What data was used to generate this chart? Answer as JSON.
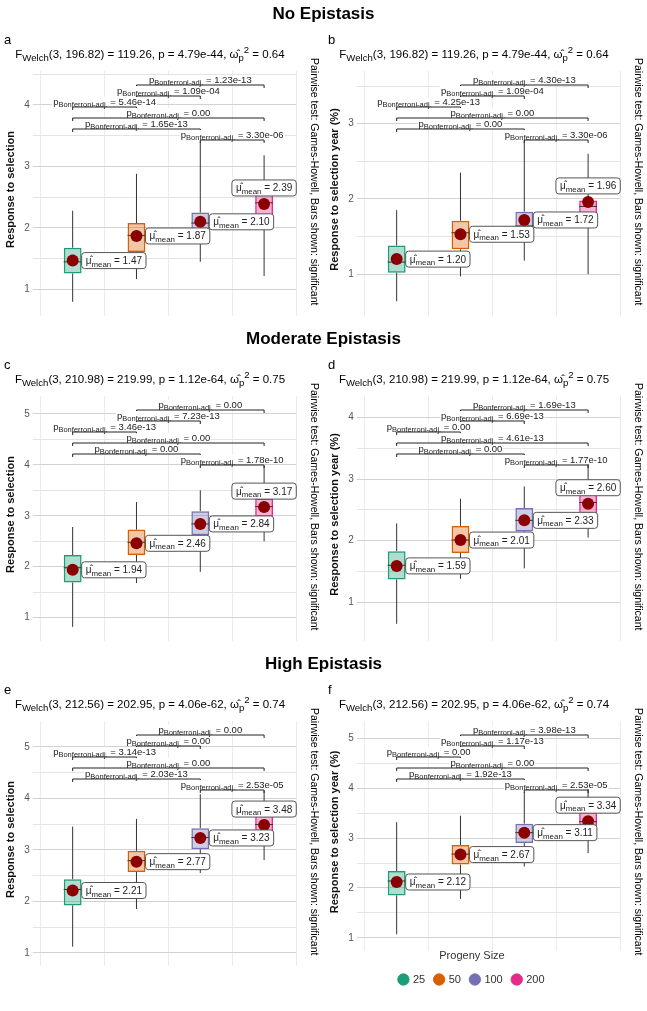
{
  "chart_data": [
    {
      "type": "box",
      "title": "No Epistasis",
      "subtitle": "F$_{Welch}$(3, 196.82) = 119.26, p = 4.79e-44, ω̂$_{p}$$^{2}$ = 0.64",
      "ylabel": "Response to selection",
      "y2label": "Pairwise test: Games-Howell, Bars shown: significant",
      "categories": [
        null,
        null,
        null,
        null
      ],
      "colors": [
        "#1b9e77",
        "#d95f02",
        "#7570b3",
        "#e7298a"
      ],
      "tick_labels": "y",
      "grid": true,
      "ylim": [
        0.7,
        4.55
      ],
      "yticks": [
        1,
        {
          "value": 1.5,
          "label": null
        },
        2,
        {
          "value": 2.5,
          "label": null
        },
        3,
        {
          "value": 3.5,
          "label": null
        },
        4,
        {
          "value": 4.5,
          "label": null
        }
      ],
      "boxes": [
        {
          "low": 0.8,
          "q1": 1.26,
          "median": 1.45,
          "q3": 1.68,
          "high": 2.28,
          "mean": 1.47
        },
        {
          "low": 1.17,
          "q1": 1.61,
          "median": 1.88,
          "q3": 2.08,
          "high": 2.88,
          "mean": 1.87
        },
        {
          "low": 1.45,
          "q1": 1.92,
          "median": 2.08,
          "q3": 2.25,
          "high": 3.4,
          "mean": 2.1
        },
        {
          "low": 1.22,
          "q1": 2.15,
          "median": 2.41,
          "q3": 2.63,
          "high": 3.18,
          "mean": 2.39
        }
      ],
      "value_labels": [
        "μ̂$_{mean}$ = 1.47",
        "μ̂$_{mean}$ = 1.87",
        "μ̂$_{mean}$ = 2.10",
        "μ̂$_{mean}$ = 2.39"
      ],
      "annotations": [
        "a",
        "p$_{Bonferroni-adj.}$ = 3.30e-06",
        "p$_{Bonferroni-adj.}$ = 1.65e-13",
        "p$_{Bonferroni-adj.}$ = 0.00",
        "p$_{Bonferroni-adj.}$ = 5.46e-14",
        "p$_{Bonferroni-adj.}$ = 1.09e-04",
        "p$_{Bonferroni-adj.}$ = 1.23e-13"
      ]
    },
    {
      "type": "box",
      "subtitle": "F$_{Welch}$(3, 196.82) = 119.26, p = 4.79e-44, ω̂$_{p}$$^{2}$ = 0.64",
      "ylabel": "Response to selection year (%)",
      "y2label": "Pairwise test: Games-Howell, Bars shown: significant",
      "categories": [
        null,
        null,
        null,
        null
      ],
      "colors": [
        "#1b9e77",
        "#d95f02",
        "#7570b3",
        "#e7298a"
      ],
      "tick_labels": "y",
      "grid": true,
      "ylim": [
        0.55,
        3.7
      ],
      "yticks": [
        1,
        {
          "value": 1.5,
          "label": null
        },
        2,
        {
          "value": 2.5,
          "label": null
        },
        3,
        {
          "value": 3.5,
          "label": null
        }
      ],
      "boxes": [
        {
          "low": 0.64,
          "q1": 1.02,
          "median": 1.16,
          "q3": 1.38,
          "high": 1.85,
          "mean": 1.2
        },
        {
          "low": 0.97,
          "q1": 1.33,
          "median": 1.55,
          "q3": 1.71,
          "high": 2.35,
          "mean": 1.53
        },
        {
          "low": 1.18,
          "q1": 1.43,
          "median": 1.64,
          "q3": 1.83,
          "high": 2.78,
          "mean": 1.72
        },
        {
          "low": 1.0,
          "q1": 1.74,
          "median": 1.9,
          "q3": 1.98,
          "high": 2.6,
          "mean": 1.96
        }
      ],
      "value_labels": [
        "μ̂$_{mean}$ = 1.20",
        "μ̂$_{mean}$ = 1.53",
        "μ̂$_{mean}$ = 1.72",
        "μ̂$_{mean}$ = 1.96"
      ],
      "annotations": [
        "b",
        "p$_{Bonferroni-adj.}$ = 3.30e-06",
        "p$_{Bonferroni-adj.}$ = 0.00",
        "p$_{Bonferroni-adj.}$ = 0.00",
        "p$_{Bonferroni-adj.}$ = 4.25e-13",
        "p$_{Bonferroni-adj.}$ = 1.09e-04",
        "p$_{Bonferroni-adj.}$ = 4.30e-13"
      ]
    },
    {
      "type": "box",
      "title": "Moderate Epistasis",
      "subtitle": "F$_{Welch}$(3, 210.98) = 219.99, p = 1.12e-64, ω̂$_{p}$$^{2}$ = 0.75",
      "ylabel": "Response to selection",
      "y2label": "Pairwise test: Games-Howell, Bars shown: significant",
      "categories": [
        null,
        null,
        null,
        null
      ],
      "colors": [
        "#1b9e77",
        "#d95f02",
        "#7570b3",
        "#e7298a"
      ],
      "tick_labels": "y",
      "grid": true,
      "ylim": [
        0.7,
        5.35
      ],
      "yticks": [
        1,
        {
          "value": 1.5,
          "label": null
        },
        2,
        {
          "value": 2.5,
          "label": null
        },
        3,
        {
          "value": 3.5,
          "label": null
        },
        4,
        {
          "value": 4.5,
          "label": null
        },
        5
      ],
      "boxes": [
        {
          "low": 0.82,
          "q1": 1.69,
          "median": 1.98,
          "q3": 2.23,
          "high": 2.78,
          "mean": 1.94
        },
        {
          "low": 1.68,
          "q1": 2.23,
          "median": 2.48,
          "q3": 2.73,
          "high": 3.27,
          "mean": 2.46
        },
        {
          "low": 1.9,
          "q1": 2.62,
          "median": 2.84,
          "q3": 3.09,
          "high": 3.5,
          "mean": 2.84
        },
        {
          "low": 2.5,
          "q1": 2.98,
          "median": 3.18,
          "q3": 3.34,
          "high": 3.98,
          "mean": 3.17
        }
      ],
      "value_labels": [
        "μ̂$_{mean}$ = 1.94",
        "μ̂$_{mean}$ = 2.46",
        "μ̂$_{mean}$ = 2.84",
        "μ̂$_{mean}$ = 3.17"
      ],
      "annotations": [
        "c",
        "p$_{Bonferroni-adj.}$ = 1.78e-10",
        "p$_{Bonferroni-adj.}$ = 0.00",
        "p$_{Bonferroni-adj.}$ = 0.00",
        "p$_{Bonferroni-adj.}$ = 3.46e-13",
        "p$_{Bonferroni-adj.}$ = 7.23e-13",
        "p$_{Bonferroni-adj.}$ = 0.00"
      ]
    },
    {
      "type": "box",
      "subtitle": "F$_{Welch}$(3, 210.98) = 219.99, p = 1.12e-64, ω̂$_{p}$$^{2}$ = 0.75",
      "ylabel": "Response to selection year (%)",
      "y2label": "Pairwise test: Games-Howell, Bars shown: significant",
      "categories": [
        null,
        null,
        null,
        null
      ],
      "colors": [
        "#1b9e77",
        "#d95f02",
        "#7570b3",
        "#e7298a"
      ],
      "tick_labels": "y",
      "grid": true,
      "ylim": [
        0.5,
        4.35
      ],
      "yticks": [
        1,
        {
          "value": 1.5,
          "label": null
        },
        2,
        {
          "value": 2.5,
          "label": null
        },
        3,
        {
          "value": 3.5,
          "label": null
        },
        4
      ],
      "boxes": [
        {
          "low": 0.65,
          "q1": 1.37,
          "median": 1.6,
          "q3": 1.83,
          "high": 2.28,
          "mean": 1.59
        },
        {
          "low": 1.38,
          "q1": 1.8,
          "median": 2.01,
          "q3": 2.24,
          "high": 2.68,
          "mean": 2.01
        },
        {
          "low": 1.55,
          "q1": 2.15,
          "median": 2.33,
          "q3": 2.53,
          "high": 2.88,
          "mean": 2.33
        },
        {
          "low": 2.05,
          "q1": 2.44,
          "median": 2.62,
          "q3": 2.76,
          "high": 3.25,
          "mean": 2.6
        }
      ],
      "value_labels": [
        "μ̂$_{mean}$ = 1.59",
        "μ̂$_{mean}$ = 2.01",
        "μ̂$_{mean}$ = 2.33",
        "μ̂$_{mean}$ = 2.60"
      ],
      "annotations": [
        "d",
        "p$_{Bonferroni-adj.}$ = 1.77e-10",
        "p$_{Bonferroni-adj.}$ = 0.00",
        "p$_{Bonferroni-adj.}$ = 4.61e-13",
        "p$_{Bonferroni-adj.}$ = 0.00",
        "p$_{Bonferroni-adj.}$ = 6.69e-13",
        "p$_{Bonferroni-adj.}$ = 1.69e-13"
      ]
    },
    {
      "type": "box",
      "title": "High Epistasis",
      "subtitle": "F$_{Welch}$(3, 212.56) = 202.95, p = 4.06e-62, ω̂$_{p}$$^{2}$ = 0.74",
      "ylabel": "Response to selection",
      "y2label": "Pairwise test: Games-Howell, Bars shown: significant",
      "categories": [
        null,
        null,
        null,
        null
      ],
      "colors": [
        "#1b9e77",
        "#d95f02",
        "#7570b3",
        "#e7298a"
      ],
      "tick_labels": "y",
      "grid": true,
      "ylim": [
        0.9,
        5.5
      ],
      "yticks": [
        1,
        {
          "value": 1.5,
          "label": null
        },
        2,
        {
          "value": 2.5,
          "label": null
        },
        3,
        {
          "value": 3.5,
          "label": null
        },
        4,
        {
          "value": 4.5,
          "label": null
        },
        5
      ],
      "boxes": [
        {
          "low": 1.12,
          "q1": 1.92,
          "median": 2.23,
          "q3": 2.43,
          "high": 3.45,
          "mean": 2.21
        },
        {
          "low": 1.85,
          "q1": 2.57,
          "median": 2.79,
          "q3": 2.98,
          "high": 3.6,
          "mean": 2.77
        },
        {
          "low": 2.55,
          "q1": 3.01,
          "median": 3.24,
          "q3": 3.42,
          "high": 4.08,
          "mean": 3.23
        },
        {
          "low": 2.8,
          "q1": 3.28,
          "median": 3.49,
          "q3": 3.69,
          "high": 4.15,
          "mean": 3.48
        }
      ],
      "value_labels": [
        "μ̂$_{mean}$ = 2.21",
        "μ̂$_{mean}$ = 2.77",
        "μ̂$_{mean}$ = 3.23",
        "μ̂$_{mean}$ = 3.48"
      ],
      "annotations": [
        "e",
        "p$_{Bonferroni-adj.}$ = 2.53e-05",
        "p$_{Bonferroni-adj.}$ = 2.03e-13",
        "p$_{Bonferroni-adj.}$ = 0.00",
        "p$_{Bonferroni-adj.}$ = 3.14e-13",
        "p$_{Bonferroni-adj.}$ = 0.00",
        "p$_{Bonferroni-adj.}$ = 0.00"
      ]
    },
    {
      "type": "box",
      "subtitle": "F$_{Welch}$(3, 212.56) = 202.95, p = 4.06e-62, ω̂$_{p}$$^{2}$ = 0.74",
      "ylabel": "Response to selection year (%)",
      "y2label": "Pairwise test: Games-Howell, Bars shown: significant",
      "legend_title": "Progeny Size",
      "legend": "bottom",
      "categories": [
        null,
        null,
        null,
        null
      ],
      "tick_labels": "y",
      "grid": true,
      "ylim": [
        0.9,
        5.35
      ],
      "yticks": [
        1,
        {
          "value": 1.5,
          "label": null
        },
        2,
        {
          "value": 2.5,
          "label": null
        },
        3,
        {
          "value": 3.5,
          "label": null
        },
        4,
        {
          "value": 4.5,
          "label": null
        },
        5
      ],
      "series": [
        {
          "name": "25",
          "color": "#1b9e77",
          "boxes": [
            {
              "low": 1.07,
              "q1": 1.85,
              "median": 2.14,
              "q3": 2.34,
              "high": 3.32,
              "mean": 2.12
            },
            null,
            null,
            null
          ],
          "value_labels": [
            "μ̂$_{mean}$ = 2.12",
            null,
            null,
            null
          ]
        },
        {
          "name": "50",
          "color": "#d95f02",
          "boxes": [
            null,
            {
              "low": 1.78,
              "q1": 2.47,
              "median": 2.68,
              "q3": 2.86,
              "high": 3.45,
              "mean": 2.67
            },
            null,
            null
          ],
          "value_labels": [
            null,
            "μ̂$_{mean}$ = 2.67",
            null,
            null
          ]
        },
        {
          "name": "100",
          "color": "#7570b3",
          "boxes": [
            null,
            null,
            {
              "low": 2.43,
              "q1": 2.9,
              "median": 3.11,
              "q3": 3.29,
              "high": 3.92,
              "mean": 3.11
            },
            null
          ],
          "value_labels": [
            null,
            null,
            "μ̂$_{mean}$ = 3.11",
            null
          ]
        },
        {
          "name": "200",
          "color": "#e7298a",
          "boxes": [
            null,
            null,
            null,
            {
              "low": 2.7,
              "q1": 3.16,
              "median": 3.33,
              "q3": 3.52,
              "high": 4.0,
              "mean": 3.34
            }
          ],
          "value_labels": [
            null,
            null,
            null,
            "μ̂$_{mean}$ = 3.34"
          ]
        }
      ],
      "annotations": [
        "f",
        "p$_{Bonferroni-adj.}$ = 2.53e-05",
        "p$_{Bonferroni-adj.}$ = 1.92e-13",
        "p$_{Bonferroni-adj.}$ = 0.00",
        "p$_{Bonferroni-adj.}$ = 0.00",
        "p$_{Bonferroni-adj.}$ = 1.17e-13",
        "p$_{Bonferroni-adj.}$ = 3.98e-13"
      ]
    }
  ]
}
